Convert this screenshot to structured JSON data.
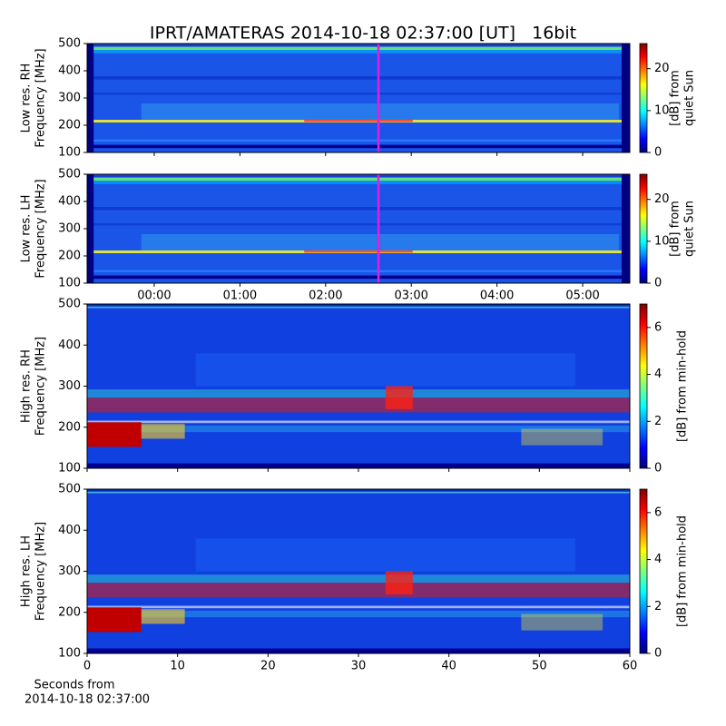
{
  "title": "IPRT/AMATERAS 2014-10-18 02:37:00 [UT]   16bit",
  "chart_data": [
    {
      "type": "heatmap",
      "ylabel": [
        "Low res. RH",
        "Frequency [MHz]"
      ],
      "ylim": [
        100,
        500
      ],
      "yticks": [
        100,
        200,
        300,
        400,
        500
      ],
      "xlim": [
        -47,
        333
      ],
      "marker": 157,
      "colorbar_label": [
        "[dB] from",
        "quiet Sun"
      ],
      "clim": [
        0,
        26
      ],
      "cticks": [
        0,
        10,
        20
      ]
    },
    {
      "type": "heatmap",
      "ylabel": [
        "Low res. LH",
        "Frequency [MHz]"
      ],
      "ylim": [
        100,
        500
      ],
      "yticks": [
        100,
        200,
        300,
        400,
        500
      ],
      "xlim": [
        -47,
        333
      ],
      "marker": 157,
      "xticks": [
        {
          "value": 0,
          "label": "00:00"
        },
        {
          "value": 60,
          "label": "01:00"
        },
        {
          "value": 120,
          "label": "02:00"
        },
        {
          "value": 180,
          "label": "03:00"
        },
        {
          "value": 240,
          "label": "04:00"
        },
        {
          "value": 300,
          "label": "05:00"
        }
      ],
      "colorbar_label": [
        "[dB] from",
        "quiet Sun"
      ],
      "clim": [
        0,
        26
      ],
      "cticks": [
        0,
        10,
        20
      ]
    },
    {
      "type": "heatmap",
      "ylabel": [
        "High res. RH",
        "Frequency [MHz]"
      ],
      "ylim": [
        100,
        500
      ],
      "yticks": [
        100,
        200,
        300,
        400,
        500
      ],
      "xlim": [
        0,
        60
      ],
      "colorbar_label": [
        "[dB] from min-hold"
      ],
      "clim": [
        0,
        7
      ],
      "cticks": [
        0,
        2,
        4,
        6
      ]
    },
    {
      "type": "heatmap",
      "ylabel": [
        "High res. LH",
        "Frequency [MHz]"
      ],
      "ylim": [
        100,
        500
      ],
      "yticks": [
        100,
        200,
        300,
        400,
        500
      ],
      "xlim": [
        0,
        60
      ],
      "xticks": [
        0,
        10,
        20,
        30,
        40,
        50,
        60
      ],
      "xlabel": [
        "Seconds from",
        "2014-10-18 02:37:00"
      ],
      "colorbar_label": [
        "[dB] from min-hold"
      ],
      "clim": [
        0,
        7
      ],
      "cticks": [
        0,
        2,
        4,
        6
      ]
    }
  ]
}
